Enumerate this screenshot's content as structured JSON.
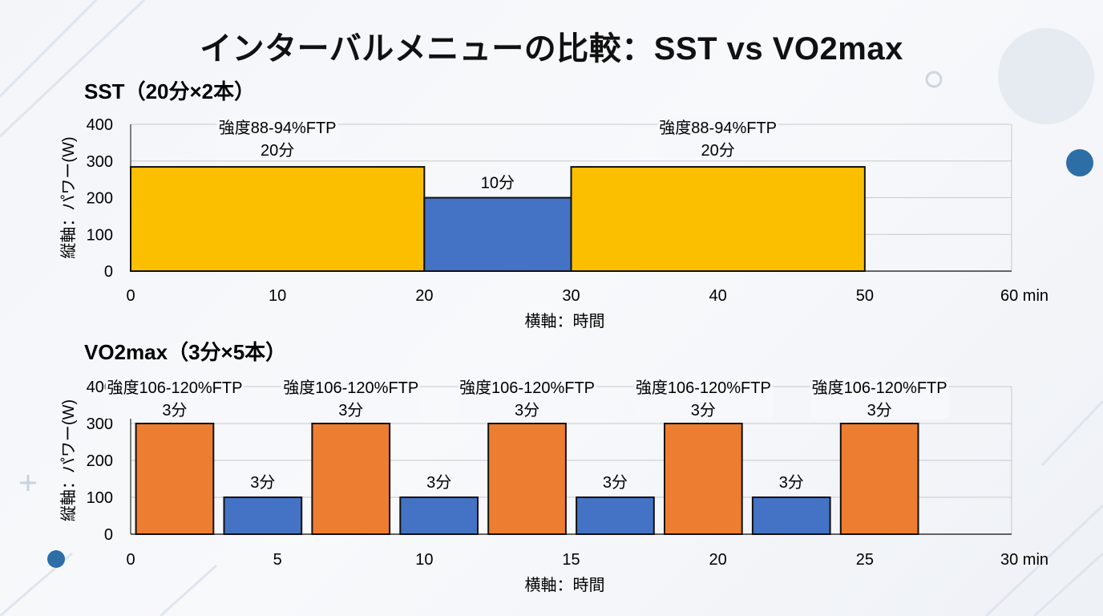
{
  "title": "インターバルメニューの比較：SST vs VO2max",
  "colors": {
    "sst_work": "#fbbf00",
    "rest": "#4472c4",
    "vo2_work": "#ed7d31",
    "grid": "#c8c8c8",
    "accent": "#2e6ea6"
  },
  "chart_data": [
    {
      "type": "bar",
      "title": "SST（20分×2本）",
      "xlabel": "横軸：時間",
      "ylabel": "縦軸：パワー(W)",
      "xlim": [
        0,
        60
      ],
      "ylim": [
        0,
        400
      ],
      "xticks": [
        0,
        10,
        20,
        30,
        40,
        50,
        60
      ],
      "xtick_labels": [
        "0",
        "10",
        "20",
        "30",
        "40",
        "50",
        "60 min"
      ],
      "yticks": [
        0,
        100,
        200,
        300,
        400
      ],
      "ytick_labels": [
        "0",
        "100",
        "200",
        "300",
        "400"
      ],
      "grid": true,
      "segments": [
        {
          "kind": "work",
          "start": 0,
          "end": 20,
          "power": 284,
          "label_top": "強度88-94%FTP",
          "label": "20分"
        },
        {
          "kind": "rest",
          "start": 20,
          "end": 30,
          "power": 200,
          "label": "10分"
        },
        {
          "kind": "work",
          "start": 30,
          "end": 50,
          "power": 284,
          "label_top": "強度88-94%FTP",
          "label": "20分"
        }
      ]
    },
    {
      "type": "bar",
      "title": "VO2max（3分×5本）",
      "xlabel": "横軸：時間",
      "ylabel": "縦軸：パワー(W)",
      "xlim": [
        0,
        30
      ],
      "ylim": [
        0,
        400
      ],
      "xticks": [
        0,
        5,
        10,
        15,
        20,
        25,
        30
      ],
      "xtick_labels": [
        "0",
        "5",
        "10",
        "15",
        "20",
        "25",
        "30 min"
      ],
      "yticks": [
        0,
        100,
        200,
        300,
        400
      ],
      "ytick_labels": [
        "0",
        "100",
        "200",
        "300",
        "400"
      ],
      "grid": true,
      "segments": [
        {
          "kind": "work",
          "start": 0,
          "end": 3,
          "power": 300,
          "label_top": "強度106-120%FTP",
          "label": "3分"
        },
        {
          "kind": "rest",
          "start": 3,
          "end": 6,
          "power": 100,
          "label": "3分"
        },
        {
          "kind": "work",
          "start": 6,
          "end": 9,
          "power": 300,
          "label_top": "強度106-120%FTP",
          "label": "3分"
        },
        {
          "kind": "rest",
          "start": 9,
          "end": 12,
          "power": 100,
          "label": "3分"
        },
        {
          "kind": "work",
          "start": 12,
          "end": 15,
          "power": 300,
          "label_top": "強度106-120%FTP",
          "label": "3分"
        },
        {
          "kind": "rest",
          "start": 15,
          "end": 18,
          "power": 100,
          "label": "3分"
        },
        {
          "kind": "work",
          "start": 18,
          "end": 21,
          "power": 300,
          "label_top": "強度106-120%FTP",
          "label": "3分"
        },
        {
          "kind": "rest",
          "start": 21,
          "end": 24,
          "power": 100,
          "label": "3分"
        },
        {
          "kind": "work",
          "start": 24,
          "end": 27,
          "power": 300,
          "label_top": "強度106-120%FTP",
          "label": "3分"
        }
      ]
    }
  ]
}
